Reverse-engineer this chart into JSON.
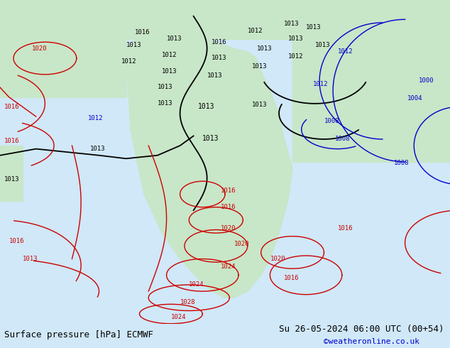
{
  "title_left": "Surface pressure [hPa] ECMWF",
  "title_right": "Su 26-05-2024 06:00 UTC (00+54)",
  "credit": "©weatheronline.co.uk",
  "bg_color": "#d0e8f8",
  "land_color": "#c8e6c8",
  "border_color": "#808080",
  "font_color_black": "#000000",
  "font_color_red": "#cc0000",
  "font_color_blue": "#0000cc",
  "font_size_label": 9,
  "font_size_footer": 9,
  "contour_colors": {
    "black": "#000000",
    "red": "#cc0000",
    "blue": "#0000cc"
  },
  "figsize": [
    6.34,
    4.9
  ],
  "dpi": 100
}
